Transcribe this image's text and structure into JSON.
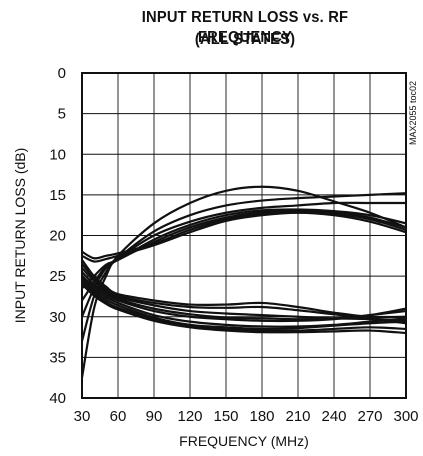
{
  "chart_data": {
    "type": "line",
    "title_line1": "INPUT RETURN LOSS vs. RF FREQUENCY",
    "title_line2": "(ALL STATES)",
    "xlabel": "FREQUENCY (MHz)",
    "ylabel": "INPUT RETURN LOSS (dB)",
    "code_label": "MAX2055 toc02",
    "xlim": [
      30,
      300
    ],
    "ylim": [
      0,
      40
    ],
    "y_inverted": true,
    "grid": true,
    "x_ticks": [
      30,
      60,
      90,
      120,
      150,
      180,
      210,
      240,
      270,
      300
    ],
    "y_ticks": [
      0,
      5,
      10,
      15,
      20,
      25,
      30,
      35,
      40
    ],
    "line_color": "#111111",
    "series": [
      {
        "x": [
          30,
          40,
          50,
          60,
          90,
          120,
          150,
          180,
          210,
          240,
          270,
          300
        ],
        "values": [
          37.5,
          29.0,
          25.0,
          22.5,
          18.5,
          16.0,
          14.5,
          14.0,
          14.5,
          15.8,
          17.2,
          19.0
        ]
      },
      {
        "x": [
          30,
          40,
          50,
          60,
          90,
          120,
          150,
          180,
          210,
          240,
          270,
          300
        ],
        "values": [
          33.0,
          27.5,
          24.5,
          22.8,
          19.5,
          17.5,
          16.3,
          15.7,
          15.4,
          15.2,
          15.0,
          14.8
        ]
      },
      {
        "x": [
          30,
          40,
          50,
          60,
          90,
          120,
          150,
          180,
          210,
          240,
          270,
          300
        ],
        "values": [
          30.0,
          26.5,
          24.0,
          22.8,
          20.0,
          18.3,
          17.2,
          16.6,
          16.3,
          16.0,
          16.0,
          16.0
        ]
      },
      {
        "x": [
          30,
          40,
          50,
          60,
          90,
          120,
          150,
          180,
          210,
          240,
          270,
          300
        ],
        "values": [
          28.0,
          25.8,
          23.8,
          23.0,
          20.5,
          18.7,
          17.5,
          16.9,
          16.8,
          17.0,
          17.5,
          18.5
        ]
      },
      {
        "x": [
          30,
          40,
          50,
          60,
          90,
          120,
          150,
          180,
          210,
          240,
          270,
          300
        ],
        "values": [
          26.5,
          25.0,
          23.6,
          23.0,
          20.8,
          19.0,
          17.8,
          17.1,
          16.9,
          17.1,
          17.8,
          19.0
        ]
      },
      {
        "x": [
          30,
          40,
          50,
          60,
          90,
          120,
          150,
          180,
          210,
          240,
          270,
          300
        ],
        "values": [
          22.0,
          22.8,
          22.5,
          22.2,
          21.0,
          19.3,
          18.0,
          17.3,
          17.0,
          17.3,
          18.0,
          19.3
        ]
      },
      {
        "x": [
          30,
          40,
          50,
          60,
          90,
          120,
          150,
          180,
          210,
          240,
          270,
          300
        ],
        "values": [
          22.5,
          23.2,
          22.9,
          22.5,
          21.2,
          19.6,
          18.2,
          17.5,
          17.2,
          17.5,
          18.3,
          19.6
        ]
      },
      {
        "x": [
          30,
          40,
          50,
          60,
          90,
          120,
          150,
          180,
          210,
          240,
          270,
          300
        ],
        "values": [
          23.0,
          25.0,
          26.3,
          27.2,
          28.0,
          28.5,
          28.5,
          28.3,
          28.8,
          29.5,
          30.0,
          30.0
        ]
      },
      {
        "x": [
          30,
          40,
          50,
          60,
          90,
          120,
          150,
          180,
          210,
          240,
          270,
          300
        ],
        "values": [
          23.5,
          25.3,
          26.5,
          27.4,
          28.3,
          28.8,
          28.9,
          28.8,
          29.2,
          29.7,
          30.2,
          30.5
        ]
      },
      {
        "x": [
          30,
          40,
          50,
          60,
          90,
          120,
          150,
          180,
          210,
          240,
          270,
          300
        ],
        "values": [
          24.0,
          25.6,
          26.8,
          27.6,
          28.6,
          29.3,
          29.6,
          29.8,
          30.0,
          30.2,
          30.3,
          30.8
        ]
      },
      {
        "x": [
          30,
          40,
          50,
          60,
          90,
          120,
          150,
          180,
          210,
          240,
          270,
          300
        ],
        "values": [
          24.5,
          26.0,
          27.0,
          27.8,
          29.0,
          29.7,
          30.1,
          30.2,
          30.3,
          30.2,
          29.8,
          29.3
        ]
      },
      {
        "x": [
          30,
          40,
          50,
          60,
          90,
          120,
          150,
          180,
          210,
          240,
          270,
          300
        ],
        "values": [
          25.0,
          26.3,
          27.3,
          28.0,
          29.3,
          30.0,
          30.3,
          30.5,
          30.5,
          30.3,
          29.8,
          29.0
        ]
      },
      {
        "x": [
          30,
          40,
          50,
          60,
          90,
          120,
          150,
          180,
          210,
          240,
          270,
          300
        ],
        "values": [
          25.2,
          26.6,
          27.6,
          28.3,
          29.8,
          30.6,
          31.0,
          31.2,
          31.2,
          31.0,
          30.6,
          30.2
        ]
      },
      {
        "x": [
          30,
          40,
          50,
          60,
          90,
          120,
          150,
          180,
          210,
          240,
          270,
          300
        ],
        "values": [
          25.5,
          26.9,
          27.9,
          28.6,
          30.1,
          31.0,
          31.3,
          31.5,
          31.4,
          31.1,
          30.8,
          30.6
        ]
      },
      {
        "x": [
          30,
          40,
          50,
          60,
          90,
          120,
          150,
          180,
          210,
          240,
          270,
          300
        ],
        "values": [
          25.8,
          27.2,
          28.2,
          28.9,
          30.3,
          31.1,
          31.5,
          31.7,
          31.7,
          31.5,
          31.3,
          31.5
        ]
      },
      {
        "x": [
          30,
          40,
          50,
          60,
          90,
          120,
          150,
          180,
          210,
          240,
          270,
          300
        ],
        "values": [
          26.0,
          27.4,
          28.4,
          29.1,
          30.5,
          31.3,
          31.7,
          31.9,
          31.9,
          31.8,
          31.7,
          32.0
        ]
      }
    ]
  }
}
